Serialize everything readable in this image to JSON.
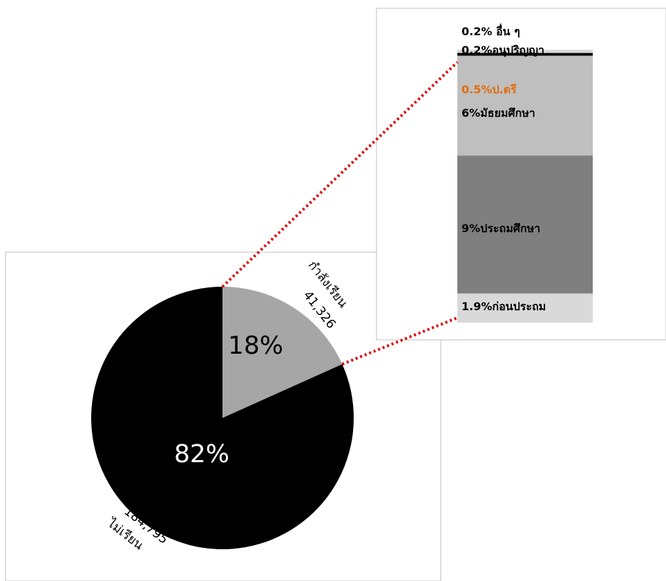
{
  "chart_data": [
    {
      "type": "pie",
      "slices": [
        {
          "label": "กำลังเรียน",
          "value": 41326,
          "percent_label": "18%",
          "count_label": "41,326",
          "color": "#a6a6a6"
        },
        {
          "label": "ไม่เรียน",
          "value": 184795,
          "percent_label": "82%",
          "count_label": "184,795",
          "color": "#000000"
        }
      ]
    },
    {
      "type": "bar",
      "stacked": true,
      "breakdown_of": "กำลังเรียน",
      "segments": [
        {
          "text": "1.9%ก่อนประถม",
          "value": 1.9,
          "color": "#d9d9d9",
          "text_color": "#000000"
        },
        {
          "text": "9%ประถมศึกษา",
          "value": 9,
          "color": "#7f7f7f",
          "text_color": "#000000"
        },
        {
          "text": "6%มัธยมศึกษา",
          "value": 6,
          "color": "#bfbfbf",
          "text_color": "#000000"
        },
        {
          "text": "0.5%ป.ตรี",
          "value": 0.5,
          "color": "#bfbfbf",
          "text_color": "#e36c09"
        },
        {
          "text": "0.2%อนุปริญญา",
          "value": 0.2,
          "color": "#000000",
          "text_color": "#000000"
        },
        {
          "text": "0.2% อื่น ๆ",
          "value": 0.2,
          "color": "#d9d9d9",
          "text_color": "#000000"
        }
      ]
    }
  ],
  "colors": {
    "connector": "#e00000",
    "frame": "#bfbfbf"
  }
}
